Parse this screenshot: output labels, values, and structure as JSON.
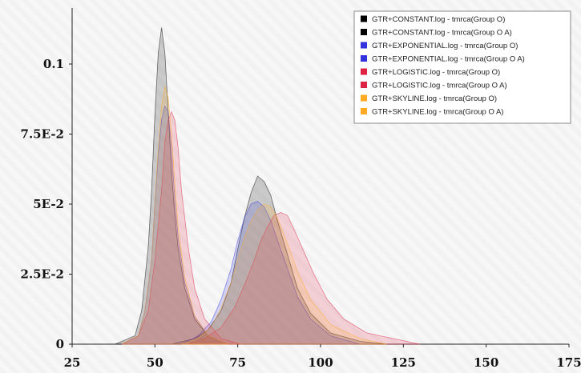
{
  "chart_data": {
    "type": "area",
    "title": "",
    "xlabel": "",
    "ylabel": "",
    "xlim": [
      25,
      175
    ],
    "ylim": [
      0,
      0.12
    ],
    "xticks": [
      "25",
      "50",
      "75",
      "100",
      "125",
      "150",
      "175"
    ],
    "yticks": [
      "0",
      "2.5E-2",
      "5E-2",
      "7.5E-2",
      "0.1"
    ],
    "legend_position": "top-right",
    "grid": false,
    "series": [
      {
        "name": "GTR+CONSTANT.log - tmrca(Group O)",
        "color": "#000000",
        "points": [
          [
            38,
            0
          ],
          [
            44,
            0.003
          ],
          [
            46,
            0.012
          ],
          [
            48,
            0.035
          ],
          [
            49,
            0.055
          ],
          [
            50,
            0.082
          ],
          [
            51,
            0.104
          ],
          [
            52,
            0.113
          ],
          [
            53,
            0.104
          ],
          [
            54,
            0.083
          ],
          [
            55,
            0.062
          ],
          [
            56,
            0.046
          ],
          [
            57,
            0.034
          ],
          [
            59,
            0.02
          ],
          [
            62,
            0.009
          ],
          [
            66,
            0.003
          ],
          [
            72,
            0
          ]
        ]
      },
      {
        "name": "GTR+CONSTANT.log - tmrca(Group O A)",
        "color": "#000000",
        "points": [
          [
            55,
            0
          ],
          [
            62,
            0.002
          ],
          [
            66,
            0.005
          ],
          [
            70,
            0.012
          ],
          [
            73,
            0.022
          ],
          [
            75,
            0.034
          ],
          [
            77,
            0.045
          ],
          [
            79,
            0.054
          ],
          [
            81,
            0.06
          ],
          [
            83,
            0.058
          ],
          [
            85,
            0.053
          ],
          [
            87,
            0.044
          ],
          [
            90,
            0.032
          ],
          [
            93,
            0.02
          ],
          [
            97,
            0.011
          ],
          [
            103,
            0.004
          ],
          [
            112,
            0.001
          ],
          [
            120,
            0
          ]
        ]
      },
      {
        "name": "GTR+EXPONENTIAL.log - tmrca(Group O)",
        "color": "#3333dd",
        "points": [
          [
            40,
            0
          ],
          [
            45,
            0.003
          ],
          [
            47,
            0.012
          ],
          [
            49,
            0.03
          ],
          [
            50,
            0.05
          ],
          [
            51,
            0.068
          ],
          [
            52,
            0.08
          ],
          [
            53,
            0.085
          ],
          [
            54,
            0.083
          ],
          [
            55,
            0.07
          ],
          [
            56,
            0.052
          ],
          [
            57,
            0.038
          ],
          [
            59,
            0.022
          ],
          [
            62,
            0.01
          ],
          [
            66,
            0.003
          ],
          [
            72,
            0
          ]
        ]
      },
      {
        "name": "GTR+EXPONENTIAL.log - tmrca(Group O A)",
        "color": "#3333dd",
        "points": [
          [
            58,
            0
          ],
          [
            63,
            0.003
          ],
          [
            67,
            0.008
          ],
          [
            70,
            0.016
          ],
          [
            73,
            0.027
          ],
          [
            75,
            0.037
          ],
          [
            77,
            0.045
          ],
          [
            79,
            0.05
          ],
          [
            81,
            0.051
          ],
          [
            83,
            0.049
          ],
          [
            85,
            0.044
          ],
          [
            87,
            0.037
          ],
          [
            90,
            0.027
          ],
          [
            93,
            0.017
          ],
          [
            97,
            0.009
          ],
          [
            103,
            0.003
          ],
          [
            112,
            0
          ]
        ]
      },
      {
        "name": "GTR+LOGISTIC.log - tmrca(Group O)",
        "color": "#dd2244",
        "points": [
          [
            40,
            0
          ],
          [
            45,
            0.003
          ],
          [
            48,
            0.012
          ],
          [
            50,
            0.03
          ],
          [
            52,
            0.055
          ],
          [
            53,
            0.072
          ],
          [
            54,
            0.08
          ],
          [
            55,
            0.083
          ],
          [
            56,
            0.08
          ],
          [
            57,
            0.07
          ],
          [
            58,
            0.055
          ],
          [
            60,
            0.035
          ],
          [
            62,
            0.02
          ],
          [
            65,
            0.009
          ],
          [
            70,
            0.002
          ],
          [
            76,
            0
          ]
        ]
      },
      {
        "name": "GTR+LOGISTIC.log - tmrca(Group O A)",
        "color": "#dd2244",
        "points": [
          [
            60,
            0
          ],
          [
            65,
            0.002
          ],
          [
            70,
            0.006
          ],
          [
            74,
            0.013
          ],
          [
            77,
            0.021
          ],
          [
            80,
            0.03
          ],
          [
            82,
            0.037
          ],
          [
            84,
            0.042
          ],
          [
            86,
            0.046
          ],
          [
            88,
            0.047
          ],
          [
            90,
            0.046
          ],
          [
            92,
            0.041
          ],
          [
            95,
            0.033
          ],
          [
            98,
            0.025
          ],
          [
            102,
            0.016
          ],
          [
            107,
            0.009
          ],
          [
            114,
            0.004
          ],
          [
            122,
            0.002
          ],
          [
            130,
            0
          ]
        ]
      },
      {
        "name": "GTR+SKYLINE.log - tmrca(Group O)",
        "color": "#ffaa22",
        "points": [
          [
            40,
            0
          ],
          [
            45,
            0.003
          ],
          [
            47,
            0.012
          ],
          [
            49,
            0.03
          ],
          [
            50,
            0.05
          ],
          [
            51,
            0.07
          ],
          [
            52,
            0.085
          ],
          [
            53,
            0.092
          ],
          [
            54,
            0.088
          ],
          [
            55,
            0.075
          ],
          [
            56,
            0.058
          ],
          [
            57,
            0.042
          ],
          [
            59,
            0.024
          ],
          [
            62,
            0.01
          ],
          [
            66,
            0.003
          ],
          [
            72,
            0
          ]
        ]
      },
      {
        "name": "GTR+SKYLINE.log - tmrca(Group O A)",
        "color": "#ffaa22",
        "points": [
          [
            58,
            0
          ],
          [
            63,
            0.002
          ],
          [
            67,
            0.006
          ],
          [
            70,
            0.013
          ],
          [
            73,
            0.022
          ],
          [
            75,
            0.03
          ],
          [
            77,
            0.038
          ],
          [
            79,
            0.044
          ],
          [
            81,
            0.048
          ],
          [
            83,
            0.05
          ],
          [
            85,
            0.049
          ],
          [
            87,
            0.045
          ],
          [
            90,
            0.036
          ],
          [
            93,
            0.026
          ],
          [
            97,
            0.016
          ],
          [
            103,
            0.007
          ],
          [
            112,
            0.002
          ],
          [
            120,
            0
          ]
        ]
      }
    ]
  }
}
